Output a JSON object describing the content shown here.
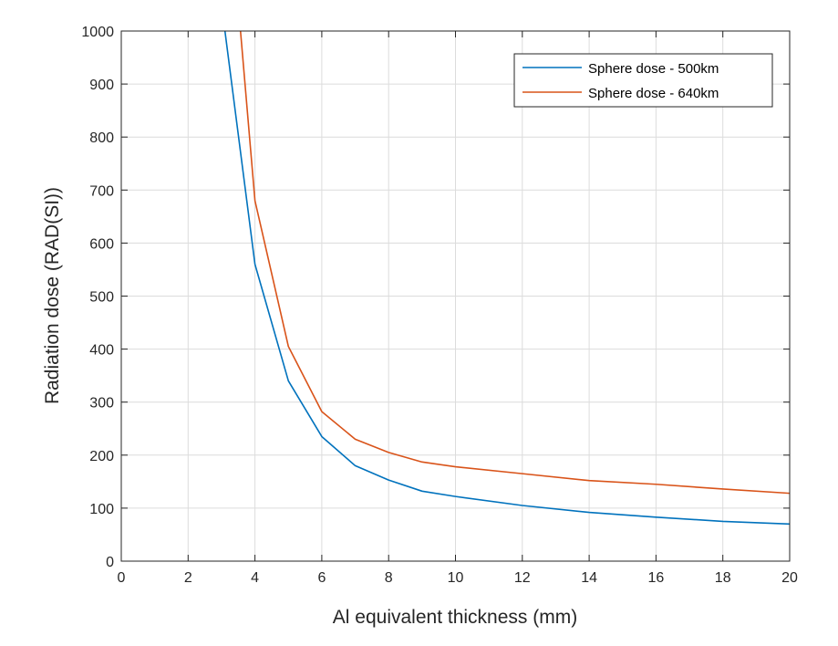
{
  "chart_data": {
    "type": "line",
    "title": "",
    "xlabel": "Al equivalent thickness (mm)",
    "ylabel": "Radiation dose (RAD(SI))",
    "xlim": [
      0,
      20
    ],
    "ylim": [
      0,
      1000
    ],
    "xticks": [
      "0",
      "2",
      "4",
      "6",
      "8",
      "10",
      "12",
      "14",
      "16",
      "18",
      "20"
    ],
    "yticks": [
      "0",
      "100",
      "200",
      "300",
      "400",
      "500",
      "600",
      "700",
      "800",
      "900",
      "1000"
    ],
    "grid": true,
    "legend_position": "top-right",
    "series": [
      {
        "name": "Sphere dose - 500km",
        "color": "#0072BD",
        "x": [
          3,
          4,
          5,
          6,
          7,
          8,
          9,
          10,
          12,
          14,
          16,
          18,
          20
        ],
        "y": [
          1050,
          560,
          340,
          235,
          180,
          153,
          132,
          122,
          105,
          92,
          83,
          75,
          70
        ]
      },
      {
        "name": "Sphere dose - 640km",
        "color": "#D95319",
        "x": [
          3.5,
          4,
          5,
          6,
          7,
          8,
          9,
          10,
          12,
          14,
          16,
          18,
          20
        ],
        "y": [
          1050,
          680,
          405,
          282,
          230,
          205,
          187,
          178,
          165,
          152,
          145,
          136,
          128
        ]
      }
    ]
  }
}
